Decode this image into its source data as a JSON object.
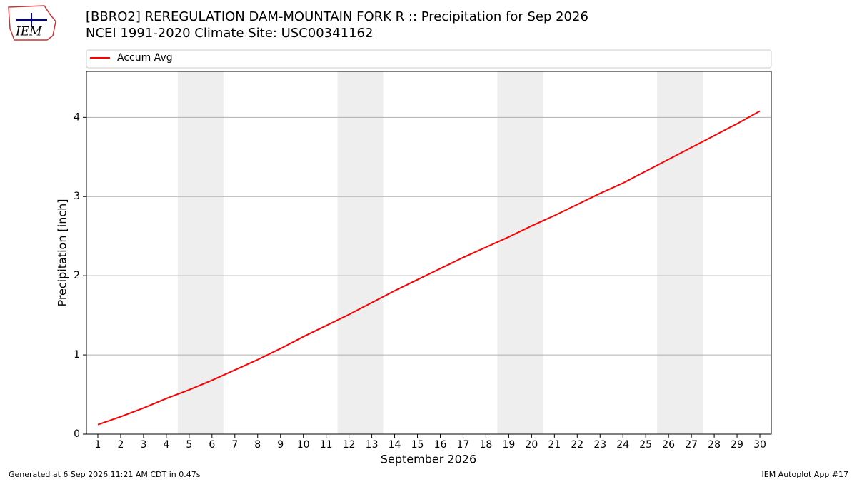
{
  "logo": "IEM",
  "footer": {
    "left": "Generated at 6 Sep 2026 11:21 AM CDT in 0.47s",
    "right": "IEM Autoplot App #17"
  },
  "chart_data": {
    "type": "line",
    "title": "[BBRO2] REREGULATION DAM-MOUNTAIN FORK R :: Precipitation for Sep 2026",
    "subtitle": "NCEI 1991-2020 Climate Site: USC00341162",
    "xlabel": "September 2026",
    "ylabel": "Precipitation [inch]",
    "x": [
      1,
      2,
      3,
      4,
      5,
      6,
      7,
      8,
      9,
      10,
      11,
      12,
      13,
      14,
      15,
      16,
      17,
      18,
      19,
      20,
      21,
      22,
      23,
      24,
      25,
      26,
      27,
      28,
      29,
      30
    ],
    "series": [
      {
        "name": "Accum Avg",
        "color": "#ff0000",
        "values": [
          0.12,
          0.22,
          0.33,
          0.45,
          0.56,
          0.68,
          0.81,
          0.94,
          1.08,
          1.23,
          1.37,
          1.51,
          1.66,
          1.81,
          1.95,
          2.09,
          2.23,
          2.36,
          2.49,
          2.63,
          2.76,
          2.9,
          3.04,
          3.17,
          3.32,
          3.47,
          3.62,
          3.77,
          3.92,
          4.08
        ]
      }
    ],
    "shaded_spans": [
      [
        4.5,
        6.5
      ],
      [
        11.5,
        13.5
      ],
      [
        18.5,
        20.5
      ],
      [
        25.5,
        27.5
      ]
    ],
    "shade_color": "#eeeeee",
    "xlim": [
      0.5,
      30.5
    ],
    "ylim": [
      0,
      4.58
    ],
    "xticks": [
      1,
      2,
      3,
      4,
      5,
      6,
      7,
      8,
      9,
      10,
      11,
      12,
      13,
      14,
      15,
      16,
      17,
      18,
      19,
      20,
      21,
      22,
      23,
      24,
      25,
      26,
      27,
      28,
      29,
      30
    ],
    "yticks": [
      0,
      1,
      2,
      3,
      4
    ],
    "grid": true,
    "legend": "top"
  }
}
